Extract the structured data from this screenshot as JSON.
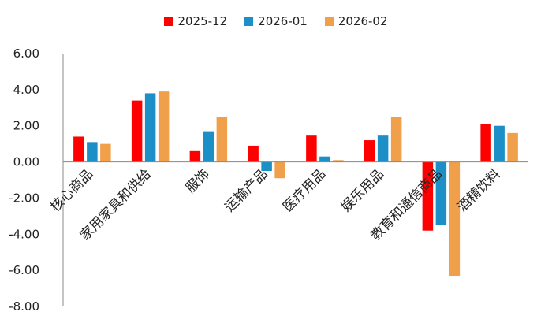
{
  "chart_data": {
    "type": "bar",
    "categories": [
      "核心商品",
      "家用家具和供给",
      "服饰",
      "运输产品",
      "医疗用品",
      "娱乐用品",
      "教育和通信商品",
      "酒精饮料"
    ],
    "series": [
      {
        "name": "2025-12",
        "color": "#ff0000",
        "values": [
          1.4,
          3.4,
          0.6,
          0.9,
          1.5,
          1.2,
          -3.8,
          2.1
        ]
      },
      {
        "name": "2026-01",
        "color": "#1b8fc6",
        "values": [
          1.1,
          3.8,
          1.7,
          -0.5,
          0.3,
          1.5,
          -3.5,
          2.0
        ]
      },
      {
        "name": "2026-02",
        "color": "#f0a04b",
        "values": [
          1.0,
          3.9,
          2.5,
          -0.9,
          0.1,
          2.5,
          -6.3,
          1.6
        ]
      }
    ],
    "yticks": [
      "6.00",
      "4.00",
      "2.00",
      "0.00",
      "-2.00",
      "-4.00",
      "-6.00",
      "-8.00"
    ],
    "ylim": [
      -8,
      6
    ],
    "legend_position": "top-center",
    "grid": false
  }
}
